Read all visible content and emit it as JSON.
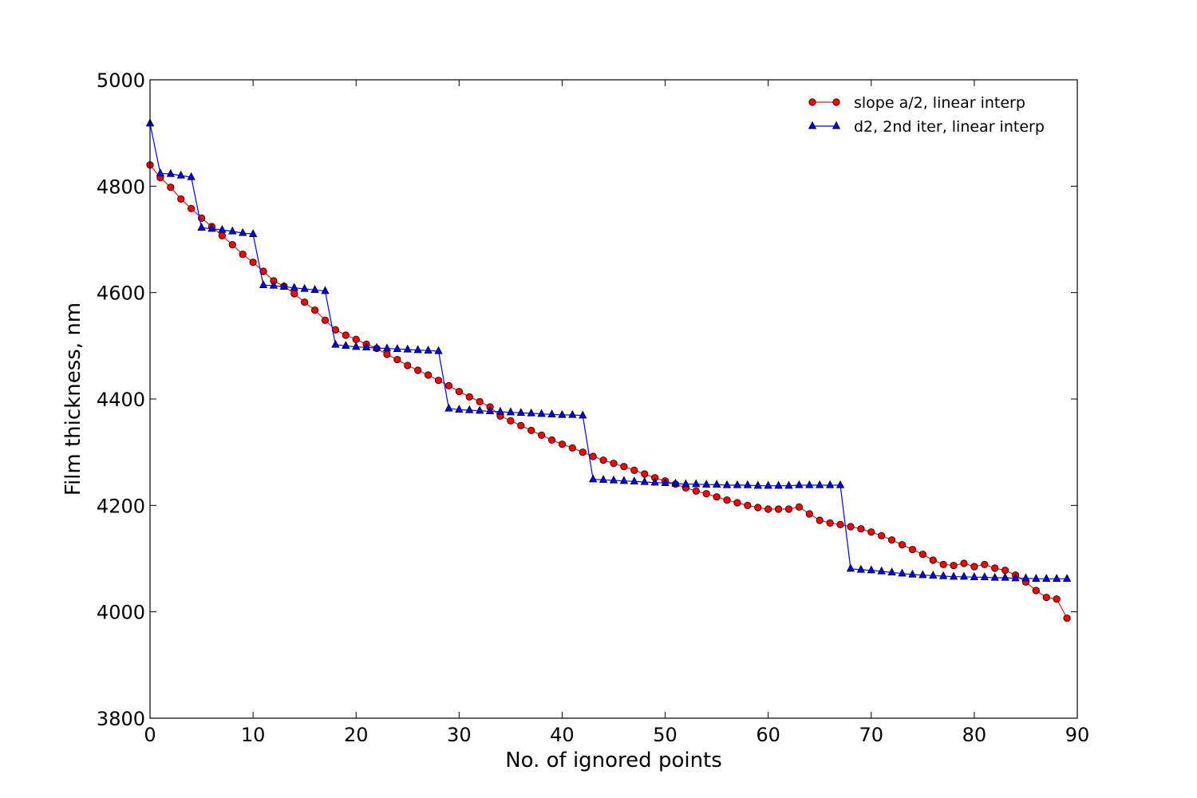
{
  "chart_data": {
    "type": "line",
    "title": "",
    "xlabel": "No. of ignored points",
    "ylabel": "Film thickness, nm",
    "xlim": [
      0,
      90
    ],
    "ylim": [
      3800,
      5000
    ],
    "xticks": [
      0,
      10,
      20,
      30,
      40,
      50,
      60,
      70,
      80,
      90
    ],
    "yticks": [
      3800,
      4000,
      4200,
      4400,
      4600,
      4800,
      5000
    ],
    "grid": false,
    "legend_position": "top-right",
    "x": [
      0,
      1,
      2,
      3,
      4,
      5,
      6,
      7,
      8,
      9,
      10,
      11,
      12,
      13,
      14,
      15,
      16,
      17,
      18,
      19,
      20,
      21,
      22,
      23,
      24,
      25,
      26,
      27,
      28,
      29,
      30,
      31,
      32,
      33,
      34,
      35,
      36,
      37,
      38,
      39,
      40,
      41,
      42,
      43,
      44,
      45,
      46,
      47,
      48,
      49,
      50,
      51,
      52,
      53,
      54,
      55,
      56,
      57,
      58,
      59,
      60,
      61,
      62,
      63,
      64,
      65,
      66,
      67,
      68,
      69,
      70,
      71,
      72,
      73,
      74,
      75,
      76,
      77,
      78,
      79,
      80,
      81,
      82,
      83,
      84,
      85,
      86,
      87,
      88,
      89
    ],
    "series": [
      {
        "name": "slope a/2, linear interp",
        "color": "#ff0000",
        "line_color": "#e41a1a",
        "marker": "circle",
        "values": [
          4840,
          4816,
          4798,
          4776,
          4758,
          4740,
          4724,
          4707,
          4690,
          4672,
          4657,
          4640,
          4622,
          4612,
          4598,
          4582,
          4567,
          4548,
          4530,
          4520,
          4512,
          4503,
          4495,
          4484,
          4474,
          4463,
          4454,
          4445,
          4435,
          4425,
          4414,
          4404,
          4395,
          4385,
          4368,
          4359,
          4350,
          4341,
          4332,
          4323,
          4315,
          4308,
          4300,
          4292,
          4285,
          4279,
          4273,
          4266,
          4259,
          4252,
          4246,
          4240,
          4233,
          4227,
          4222,
          4216,
          4210,
          4205,
          4200,
          4196,
          4193,
          4193,
          4193,
          4197,
          4184,
          4172,
          4167,
          4164,
          4160,
          4156,
          4150,
          4143,
          4135,
          4126,
          4117,
          4108,
          4097,
          4089,
          4087,
          4091,
          4085,
          4089,
          4082,
          4078,
          4069,
          4056,
          4040,
          4027,
          4024,
          3988
        ]
      },
      {
        "name": "d2, 2nd iter, linear interp",
        "color": "#0000ff",
        "line_color": "#0000ff",
        "marker": "triangle",
        "values": [
          4918,
          4824,
          4823,
          4820,
          4817,
          4722,
          4720,
          4718,
          4715,
          4712,
          4710,
          4614,
          4613,
          4611,
          4609,
          4607,
          4605,
          4603,
          4502,
          4500,
          4498,
          4497,
          4496,
          4495,
          4494,
          4493,
          4492,
          4491,
          4490,
          4382,
          4380,
          4379,
          4378,
          4377,
          4376,
          4375,
          4374,
          4373,
          4372,
          4371,
          4370,
          4370,
          4369,
          4249,
          4248,
          4247,
          4246,
          4245,
          4244,
          4243,
          4242,
          4241,
          4240,
          4240,
          4239,
          4239,
          4238,
          4238,
          4238,
          4237,
          4237,
          4237,
          4237,
          4238,
          4238,
          4238,
          4238,
          4238,
          4081,
          4079,
          4078,
          4076,
          4074,
          4072,
          4070,
          4069,
          4068,
          4067,
          4066,
          4066,
          4065,
          4065,
          4064,
          4064,
          4063,
          4063,
          4062,
          4062,
          4062,
          4062
        ]
      }
    ]
  }
}
